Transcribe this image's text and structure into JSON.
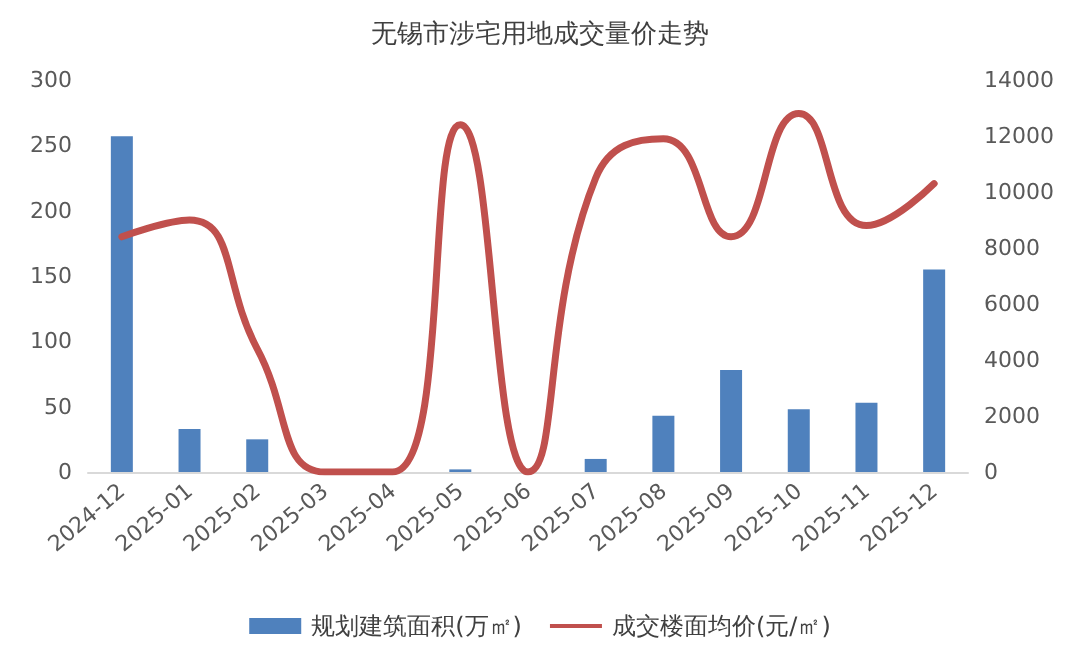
{
  "chart_data": {
    "type": "bar",
    "title": "无锡市涉宅用地成交量价走势",
    "categories": [
      "2024-12",
      "2025-01",
      "2025-02",
      "2025-03",
      "2025-04",
      "2025-05",
      "2025-06",
      "2025-07",
      "2025-08",
      "2025-09",
      "2025-10",
      "2025-11",
      "2025-12"
    ],
    "series": [
      {
        "name": "规划建筑面积(万㎡)",
        "color": "#4f81bd",
        "values": [
          257,
          33,
          25,
          0,
          0,
          2,
          0,
          10,
          43,
          78,
          48,
          53,
          155
        ]
      },
      {
        "name": "成交楼面均价(元/㎡)",
        "type": "line",
        "axis": "y2",
        "color": "#c0504d",
        "values": [
          8400,
          9000,
          4400,
          0,
          0,
          12400,
          0,
          10500,
          11900,
          8400,
          12800,
          8800,
          10300
        ]
      }
    ],
    "ylim": [
      0,
      300
    ],
    "yticks": [
      0,
      50,
      100,
      150,
      200,
      250,
      300
    ],
    "y2lim": [
      0,
      14000
    ],
    "y2ticks": [
      0,
      2000,
      4000,
      6000,
      8000,
      10000,
      12000,
      14000
    ],
    "grid": false,
    "legend": "bottom",
    "marker": "none",
    "line_style": "solid"
  }
}
